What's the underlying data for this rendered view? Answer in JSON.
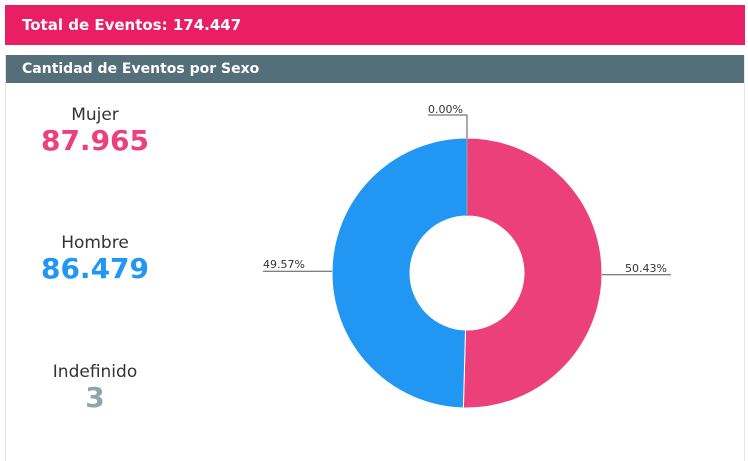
{
  "header": {
    "total_label": "Total de Eventos: 174.447"
  },
  "panel": {
    "title": "Cantidad de Eventos por Sexo"
  },
  "stats": [
    {
      "label": "Mujer",
      "value": "87.965",
      "color": "#ec407a"
    },
    {
      "label": "Hombre",
      "value": "86.479",
      "color": "#2196f3"
    },
    {
      "label": "Indefinido",
      "value": "3",
      "color": "#90a4ae"
    }
  ],
  "chart_data": {
    "type": "pie",
    "style": "donut",
    "categories": [
      "Mujer",
      "Hombre",
      "Indefinido"
    ],
    "values": [
      87965,
      86479,
      3
    ],
    "percent_labels": [
      "50.43%",
      "49.57%",
      "0.00%"
    ],
    "colors": [
      "#ec407a",
      "#2196f3",
      "#90a4ae"
    ]
  }
}
